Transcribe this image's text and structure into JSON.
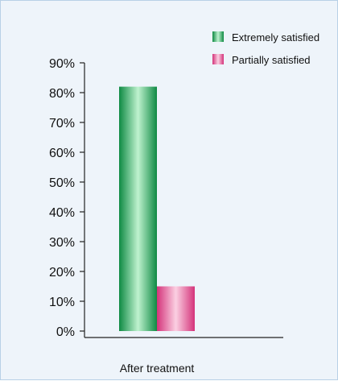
{
  "chart_data": {
    "type": "bar",
    "categories": [
      "After treatment"
    ],
    "series": [
      {
        "name": "Extremely satisfied",
        "values": [
          82
        ],
        "color": "#1ea85a"
      },
      {
        "name": "Partially satisfied",
        "values": [
          15
        ],
        "color": "#e2508c"
      }
    ],
    "title": "",
    "xlabel": "",
    "ylabel": "",
    "ylim": [
      0,
      90
    ],
    "yticks": [
      "0%",
      "10%",
      "20%",
      "30%",
      "40%",
      "50%",
      "60%",
      "70%",
      "80%",
      "90%"
    ],
    "grid": false,
    "legend_position": "top-right"
  }
}
